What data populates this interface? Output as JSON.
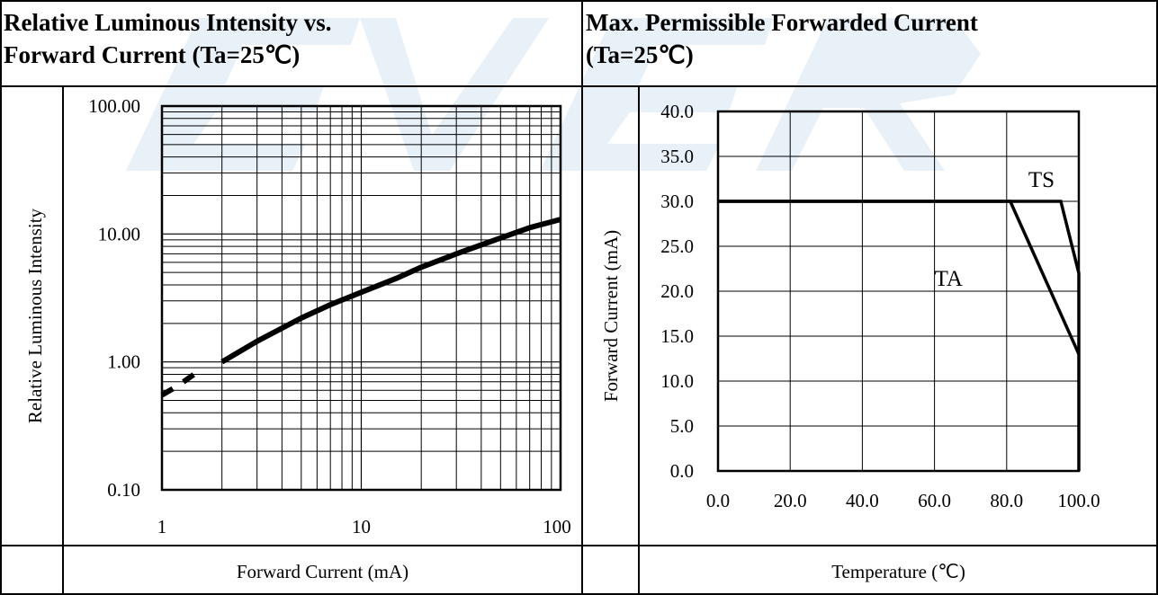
{
  "left": {
    "title_line1": "Relative Luminous Intensity vs.",
    "title_line2": "Forward Current (Ta=25℃)",
    "ylabel": "Relative Luminous Intensity",
    "xlabel": "Forward Current (mA)"
  },
  "right": {
    "title_line1": "Max. Permissible Forwarded Current",
    "title_line2": "(Ta=25℃)",
    "ylabel": "Forward Current (mA)",
    "xlabel": "Temperature (℃)"
  },
  "chart_data": [
    {
      "type": "line",
      "title": "Relative Luminous Intensity vs. Forward Current (Ta=25℃)",
      "xlabel": "Forward Current (mA)",
      "ylabel": "Relative Luminous Intensity",
      "x_scale": "log",
      "y_scale": "log",
      "xlim": [
        1,
        100
      ],
      "ylim": [
        0.1,
        100
      ],
      "x_tick_labels": [
        "1",
        "10",
        "100"
      ],
      "y_tick_labels": [
        "0.10",
        "1.00",
        "10.00",
        "100.00"
      ],
      "grid": true,
      "series": [
        {
          "style": "dashed",
          "points": [
            [
              1.0,
              0.55
            ],
            [
              1.2,
              0.65
            ],
            [
              1.45,
              0.8
            ],
            [
              1.6,
              0.9
            ]
          ]
        },
        {
          "style": "solid",
          "points": [
            [
              2,
              1.0
            ],
            [
              3,
              1.45
            ],
            [
              5,
              2.2
            ],
            [
              7,
              2.8
            ],
            [
              10,
              3.5
            ],
            [
              15,
              4.5
            ],
            [
              20,
              5.5
            ],
            [
              30,
              7.0
            ],
            [
              50,
              9.3
            ],
            [
              70,
              11.2
            ],
            [
              100,
              13.0
            ]
          ]
        }
      ]
    },
    {
      "type": "line",
      "title": "Max. Permissible Forwarded Current (Ta=25℃)",
      "xlabel": "Temperature (℃)",
      "ylabel": "Forward Current (mA)",
      "xlim": [
        0,
        100
      ],
      "ylim": [
        0,
        40
      ],
      "x_tick_labels": [
        "0.0",
        "20.0",
        "40.0",
        "60.0",
        "80.0",
        "100.0"
      ],
      "y_tick_labels": [
        "0.0",
        "5.0",
        "10.0",
        "15.0",
        "20.0",
        "25.0",
        "30.0",
        "35.0",
        "40.0"
      ],
      "grid": true,
      "series": [
        {
          "name": "TA",
          "points": [
            [
              0,
              30
            ],
            [
              81,
              30
            ],
            [
              100,
              13
            ]
          ]
        },
        {
          "name": "TS",
          "points": [
            [
              0,
              30
            ],
            [
              95,
              30
            ],
            [
              100,
              22
            ],
            [
              100,
              0
            ]
          ]
        }
      ]
    }
  ]
}
